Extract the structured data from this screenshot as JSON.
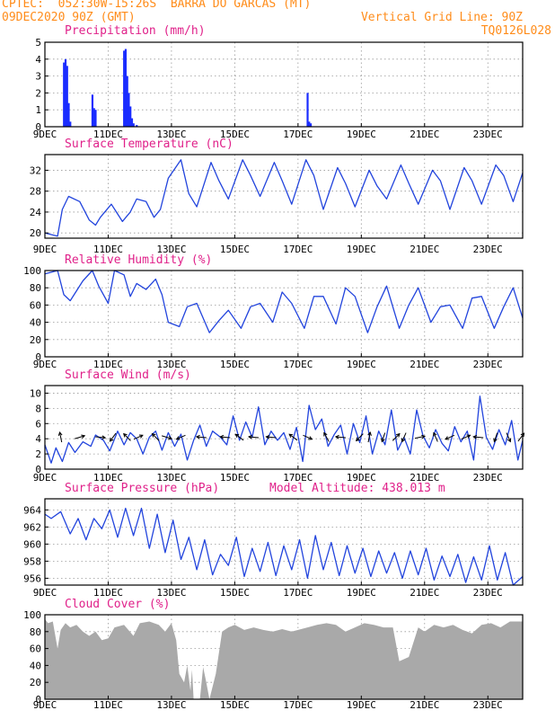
{
  "header": {
    "line1_left": "CPTEC:  052:30W-15:26S  BARRA DO GARCAS (MT)",
    "line2_left": "09DEC2020 90Z (GMT)",
    "line2_right": "Vertical Grid Line: 90Z",
    "line3_right": "TQ0126L028"
  },
  "colors": {
    "header": "#ff8c1a",
    "title": "#e0218a",
    "series": "#2244dd",
    "bars": "#1a2cff",
    "cloud": "#a9a9a9",
    "arrow": "#000000",
    "grid": "#999999"
  },
  "chart_data": [
    {
      "type": "bar",
      "title": "Precipitation (mm/h)",
      "ylim": [
        0,
        5
      ],
      "yticks": [
        "0",
        "1",
        "2",
        "3",
        "4",
        "5"
      ],
      "xticks": [
        "9DEC",
        "11DEC",
        "13DEC",
        "15DEC",
        "17DEC",
        "19DEC",
        "21DEC",
        "23DEC"
      ],
      "xlim_days": [
        9,
        24.1
      ],
      "x": [
        9.6,
        9.65,
        9.7,
        9.75,
        9.8,
        10.5,
        10.55,
        10.6,
        11.5,
        11.55,
        11.6,
        11.65,
        11.7,
        11.75,
        11.8,
        11.9,
        17.3,
        17.35,
        17.4
      ],
      "values": [
        3.8,
        4.0,
        3.6,
        1.4,
        0.3,
        1.9,
        1.1,
        1.0,
        4.5,
        4.6,
        3.0,
        2.0,
        1.2,
        0.5,
        0.2,
        0.1,
        2.0,
        0.3,
        0.2
      ]
    },
    {
      "type": "line",
      "title": "Surface Temperature (nC)",
      "ylim": [
        19,
        35
      ],
      "yticks": [
        "20",
        "24",
        "28",
        "32"
      ],
      "ytick_values": [
        20,
        24,
        28,
        32
      ],
      "xticks": [
        "9DEC",
        "11DEC",
        "13DEC",
        "15DEC",
        "17DEC",
        "19DEC",
        "21DEC",
        "23DEC"
      ],
      "x": [
        9.0,
        9.4,
        9.55,
        9.75,
        10.1,
        10.4,
        10.6,
        10.75,
        11.1,
        11.45,
        11.7,
        11.9,
        12.2,
        12.45,
        12.65,
        12.9,
        13.3,
        13.55,
        13.8,
        14.25,
        14.5,
        14.8,
        15.25,
        15.5,
        15.8,
        16.25,
        16.5,
        16.8,
        17.25,
        17.5,
        17.8,
        18.25,
        18.5,
        18.8,
        19.25,
        19.5,
        19.8,
        20.25,
        20.5,
        20.8,
        21.25,
        21.5,
        21.8,
        22.25,
        22.5,
        22.8,
        23.25,
        23.5,
        23.8,
        24.1
      ],
      "values": [
        20.0,
        19.4,
        24.5,
        27.0,
        26.0,
        22.5,
        21.5,
        23.0,
        25.5,
        22.2,
        24.0,
        26.5,
        26.0,
        23.0,
        24.5,
        30.5,
        34.0,
        27.5,
        25.0,
        33.5,
        30.0,
        26.5,
        34.0,
        31.0,
        27.0,
        33.5,
        30.0,
        25.5,
        34.0,
        31.0,
        24.5,
        32.5,
        29.5,
        25.0,
        32.0,
        29.0,
        26.5,
        33.0,
        29.5,
        25.5,
        32.0,
        30.0,
        24.5,
        32.5,
        30.0,
        25.5,
        33.0,
        31.0,
        26.0,
        31.5
      ]
    },
    {
      "type": "line",
      "title": "Relative Humidity (%)",
      "ylim": [
        0,
        100
      ],
      "yticks": [
        "0",
        "20",
        "40",
        "60",
        "80",
        "100"
      ],
      "ytick_values": [
        0,
        20,
        40,
        60,
        80,
        100
      ],
      "xticks": [
        "9DEC",
        "11DEC",
        "13DEC",
        "15DEC",
        "17DEC",
        "19DEC",
        "21DEC",
        "23DEC"
      ],
      "x": [
        9.0,
        9.4,
        9.6,
        9.8,
        10.2,
        10.5,
        10.7,
        11.0,
        11.2,
        11.5,
        11.7,
        11.9,
        12.2,
        12.5,
        12.7,
        12.9,
        13.25,
        13.5,
        13.8,
        14.2,
        14.5,
        14.8,
        15.2,
        15.5,
        15.8,
        16.2,
        16.5,
        16.8,
        17.2,
        17.5,
        17.8,
        18.2,
        18.5,
        18.8,
        19.2,
        19.5,
        19.8,
        20.2,
        20.5,
        20.8,
        21.2,
        21.5,
        21.8,
        22.2,
        22.5,
        22.8,
        23.2,
        23.5,
        23.8,
        24.1
      ],
      "values": [
        96,
        100,
        72,
        65,
        88,
        100,
        82,
        62,
        100,
        95,
        70,
        85,
        78,
        90,
        72,
        40,
        35,
        58,
        62,
        28,
        42,
        54,
        33,
        58,
        62,
        40,
        75,
        62,
        33,
        70,
        70,
        38,
        80,
        70,
        28,
        58,
        82,
        33,
        60,
        80,
        40,
        58,
        60,
        33,
        68,
        70,
        33,
        58,
        80,
        45
      ]
    },
    {
      "type": "line",
      "title": "Surface Wind (m/s)",
      "ylim": [
        0,
        11
      ],
      "yticks": [
        "0",
        "2",
        "4",
        "6",
        "8",
        "10"
      ],
      "ytick_values": [
        0,
        2,
        4,
        6,
        8,
        10
      ],
      "xticks": [
        "9DEC",
        "11DEC",
        "13DEC",
        "15DEC",
        "17DEC",
        "19DEC",
        "21DEC",
        "23DEC"
      ],
      "x": [
        9.0,
        9.2,
        9.35,
        9.55,
        9.75,
        9.95,
        10.2,
        10.45,
        10.6,
        10.85,
        11.05,
        11.3,
        11.5,
        11.7,
        11.9,
        12.1,
        12.3,
        12.5,
        12.7,
        12.9,
        13.1,
        13.3,
        13.5,
        13.7,
        13.9,
        14.1,
        14.3,
        14.55,
        14.75,
        14.95,
        15.15,
        15.35,
        15.55,
        15.75,
        15.95,
        16.15,
        16.35,
        16.55,
        16.75,
        16.95,
        17.15,
        17.35,
        17.55,
        17.75,
        17.95,
        18.15,
        18.35,
        18.55,
        18.75,
        18.95,
        19.15,
        19.35,
        19.55,
        19.75,
        19.95,
        20.15,
        20.35,
        20.55,
        20.75,
        20.95,
        21.15,
        21.35,
        21.55,
        21.75,
        21.95,
        22.15,
        22.35,
        22.55,
        22.75,
        22.95,
        23.15,
        23.35,
        23.55,
        23.75,
        23.95,
        24.1
      ],
      "values": [
        3.2,
        0.8,
        2.8,
        1.0,
        3.5,
        2.2,
        3.6,
        3.0,
        4.5,
        3.8,
        2.4,
        5.0,
        3.2,
        4.8,
        4.0,
        2.0,
        4.2,
        5.0,
        2.5,
        4.8,
        3.0,
        4.6,
        1.2,
        3.8,
        5.8,
        3.0,
        5.0,
        4.2,
        3.2,
        7.0,
        3.8,
        6.2,
        4.2,
        8.2,
        3.2,
        5.0,
        3.8,
        4.8,
        2.6,
        5.5,
        1.0,
        8.4,
        5.2,
        6.6,
        3.0,
        4.6,
        5.8,
        2.0,
        6.0,
        3.5,
        7.0,
        2.0,
        5.0,
        3.2,
        7.8,
        2.5,
        4.2,
        2.0,
        7.8,
        4.4,
        2.8,
        5.2,
        3.4,
        2.4,
        5.6,
        3.6,
        5.0,
        1.2,
        9.6,
        4.2,
        2.6,
        5.2,
        3.2,
        6.4,
        1.2,
        3.8
      ],
      "vectors": {
        "x": [
          9.5,
          10.1,
          10.75,
          11.15,
          11.6,
          11.95,
          12.5,
          12.85,
          13.3,
          13.95,
          14.7,
          15.15,
          15.6,
          16.15,
          16.85,
          17.3,
          17.9,
          18.35,
          18.95,
          19.25,
          19.7,
          20.1,
          20.35,
          20.85,
          21.35,
          21.8,
          22.3,
          22.7,
          23.25,
          23.65,
          24.05
        ],
        "u": [
          -0.2,
          1,
          1,
          -0.6,
          -0.7,
          0.9,
          -0.7,
          1,
          -0.9,
          -1,
          -1,
          -0.8,
          -1,
          -1,
          -0.8,
          0.9,
          -0.5,
          -1,
          -0.7,
          0.2,
          -0.3,
          0.7,
          -0.4,
          1,
          -0.4,
          -0.9,
          0.9,
          -1,
          -0.3,
          0.4,
          0.6
        ],
        "v": [
          1,
          0.3,
          -0.1,
          -0.8,
          0.7,
          0.4,
          0.7,
          -0.3,
          -0.4,
          0.1,
          0.1,
          0.6,
          0.1,
          0.1,
          0.6,
          -0.4,
          0.9,
          0.1,
          -0.7,
          1,
          -0.9,
          0.7,
          -0.9,
          0.2,
          0.9,
          -0.4,
          0.4,
          0.1,
          -0.9,
          -0.9,
          0.8
        ]
      }
    },
    {
      "type": "line",
      "title": "Surface Pressure (hPa)",
      "annotation": "Model Altitude: 438.013 m",
      "ylim": [
        955.2,
        965.3
      ],
      "yticks": [
        "956",
        "958",
        "960",
        "962",
        "964"
      ],
      "ytick_values": [
        956,
        958,
        960,
        962,
        964
      ],
      "xticks": [
        "9DEC",
        "11DEC",
        "13DEC",
        "15DEC",
        "17DEC",
        "19DEC",
        "21DEC",
        "23DEC"
      ],
      "x": [
        9.0,
        9.2,
        9.5,
        9.8,
        10.05,
        10.3,
        10.55,
        10.8,
        11.05,
        11.3,
        11.55,
        11.8,
        12.05,
        12.3,
        12.55,
        12.8,
        13.05,
        13.3,
        13.55,
        13.8,
        14.05,
        14.3,
        14.55,
        14.8,
        15.05,
        15.3,
        15.55,
        15.8,
        16.05,
        16.3,
        16.55,
        16.8,
        17.05,
        17.3,
        17.55,
        17.8,
        18.05,
        18.3,
        18.55,
        18.8,
        19.05,
        19.3,
        19.55,
        19.8,
        20.05,
        20.3,
        20.55,
        20.8,
        21.05,
        21.3,
        21.55,
        21.8,
        22.05,
        22.3,
        22.55,
        22.8,
        23.05,
        23.3,
        23.55,
        23.8,
        24.1
      ],
      "values": [
        963.5,
        963.0,
        963.8,
        961.2,
        963.0,
        960.5,
        963.0,
        961.8,
        964.0,
        960.8,
        964.2,
        961.0,
        964.2,
        959.5,
        963.5,
        959.0,
        962.8,
        958.2,
        960.8,
        957.0,
        960.5,
        956.4,
        958.8,
        957.5,
        960.8,
        956.2,
        959.5,
        956.8,
        960.2,
        956.3,
        959.8,
        957.0,
        960.5,
        956.0,
        961.0,
        957.0,
        960.2,
        956.3,
        959.8,
        956.6,
        959.5,
        956.2,
        959.2,
        956.6,
        959.0,
        956.0,
        959.2,
        956.4,
        959.5,
        955.8,
        958.6,
        956.2,
        958.8,
        955.5,
        958.5,
        955.8,
        959.8,
        955.8,
        959.0,
        955.0,
        956.2
      ]
    },
    {
      "type": "area",
      "title": "Cloud Cover (%)",
      "ylim": [
        0,
        100
      ],
      "yticks": [
        "0",
        "20",
        "40",
        "60",
        "80",
        "100"
      ],
      "ytick_values": [
        0,
        20,
        40,
        60,
        80,
        100
      ],
      "xticks": [
        "9DEC",
        "11DEC",
        "13DEC",
        "15DEC",
        "17DEC",
        "19DEC",
        "21DEC",
        "23DEC"
      ],
      "x": [
        9.0,
        9.1,
        9.25,
        9.4,
        9.5,
        9.65,
        9.8,
        10.0,
        10.2,
        10.4,
        10.6,
        10.8,
        11.0,
        11.2,
        11.5,
        11.8,
        12.0,
        12.3,
        12.6,
        12.8,
        13.0,
        13.15,
        13.25,
        13.4,
        13.5,
        13.6,
        13.65,
        13.7,
        13.9,
        14.0,
        14.1,
        14.2,
        14.4,
        14.6,
        14.8,
        15.0,
        15.3,
        15.6,
        15.9,
        16.2,
        16.5,
        16.8,
        17.0,
        17.3,
        17.6,
        17.9,
        18.2,
        18.5,
        18.8,
        19.1,
        19.4,
        19.7,
        20.0,
        20.2,
        20.5,
        20.8,
        21.0,
        21.3,
        21.6,
        21.9,
        22.2,
        22.5,
        22.8,
        23.1,
        23.4,
        23.7,
        24.1
      ],
      "values": [
        95,
        90,
        92,
        60,
        82,
        90,
        85,
        88,
        80,
        75,
        80,
        70,
        72,
        85,
        88,
        75,
        90,
        92,
        88,
        80,
        90,
        70,
        30,
        20,
        40,
        10,
        35,
        0,
        0,
        38,
        20,
        0,
        30,
        80,
        85,
        88,
        82,
        85,
        82,
        80,
        83,
        80,
        82,
        85,
        88,
        90,
        88,
        80,
        85,
        90,
        88,
        85,
        85,
        45,
        50,
        85,
        80,
        88,
        85,
        88,
        82,
        78,
        88,
        90,
        85,
        92,
        92
      ]
    }
  ]
}
